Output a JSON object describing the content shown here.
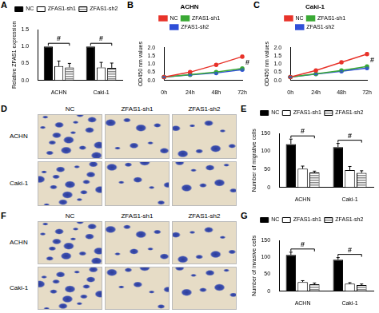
{
  "chart_data": [
    {
      "panel": "A",
      "type": "bar",
      "y_label": "Relative ZFAS1 expression",
      "categories": [
        "ACHN",
        "Caki-1"
      ],
      "series": [
        {
          "name": "NC",
          "color": "#000000",
          "values": [
            1.0,
            1.0
          ],
          "errors": [
            0,
            0
          ]
        },
        {
          "name": "ZFAS1-sh1",
          "color": "#ffffff",
          "values": [
            0.42,
            0.38
          ],
          "errors": [
            0.15,
            0.15
          ]
        },
        {
          "name": "ZFAS1-sh2",
          "color": "#8c8c8c",
          "values": [
            0.38,
            0.37
          ],
          "errors": [
            0.12,
            0.14
          ]
        }
      ],
      "ylim": [
        0,
        1.5
      ],
      "yticks": [
        {
          "value": 0,
          "label": "0.0"
        },
        {
          "value": 0.5,
          "label": "0.5"
        },
        {
          "value": 1,
          "label": "1.0"
        },
        {
          "value": 1.5,
          "label": "1.5"
        }
      ],
      "grid": false,
      "legend": "top",
      "annotations": [
        {
          "text": "#",
          "category": "ACHN"
        },
        {
          "text": "#",
          "category": "Caki-1"
        }
      ]
    },
    {
      "panel": "B",
      "type": "line",
      "title": "ACHN",
      "y_label": "OD450 nm values",
      "categories": [
        "0h",
        "24h",
        "48h",
        "72h"
      ],
      "series": [
        {
          "name": "NC",
          "color": "#e8332a",
          "marker": "circle",
          "values": [
            0.2,
            0.5,
            0.95,
            1.45
          ],
          "errors": [
            0.02,
            0.04,
            0.05,
            0.08
          ]
        },
        {
          "name": "ZFAS1-sh1",
          "color": "#3aa935",
          "marker": "circle",
          "values": [
            0.2,
            0.35,
            0.5,
            0.72
          ],
          "errors": [
            0.02,
            0.03,
            0.04,
            0.05
          ]
        },
        {
          "name": "ZFAS1-sh2",
          "color": "#2f4fd8",
          "marker": "circle",
          "values": [
            0.2,
            0.33,
            0.45,
            0.65
          ],
          "errors": [
            0.02,
            0.03,
            0.04,
            0.05
          ]
        }
      ],
      "ylim": [
        0,
        2
      ],
      "yticks": [
        {
          "value": 0,
          "label": "0.0"
        },
        {
          "value": 0.5,
          "label": "0.5"
        },
        {
          "value": 1,
          "label": "1.0"
        },
        {
          "value": 1.5,
          "label": "1.5"
        },
        {
          "value": 2,
          "label": "2.0"
        }
      ],
      "grid": false,
      "legend": "top",
      "annotations": [
        {
          "text": "#",
          "category": "72h"
        }
      ]
    },
    {
      "panel": "C",
      "type": "line",
      "title": "Caki-1",
      "y_label": "OD450 nm values",
      "categories": [
        "0h",
        "24h",
        "48h",
        "72h"
      ],
      "series": [
        {
          "name": "NC",
          "color": "#e8332a",
          "marker": "circle",
          "values": [
            0.2,
            0.6,
            1.1,
            1.6
          ],
          "errors": [
            0.02,
            0.04,
            0.06,
            0.08
          ]
        },
        {
          "name": "ZFAS1-sh1",
          "color": "#3aa935",
          "marker": "circle",
          "values": [
            0.2,
            0.4,
            0.6,
            0.85
          ],
          "errors": [
            0.02,
            0.03,
            0.04,
            0.05
          ]
        },
        {
          "name": "ZFAS1-sh2",
          "color": "#2f4fd8",
          "marker": "circle",
          "values": [
            0.2,
            0.38,
            0.55,
            0.75
          ],
          "errors": [
            0.02,
            0.03,
            0.04,
            0.05
          ]
        }
      ],
      "ylim": [
        0,
        2
      ],
      "yticks": [
        {
          "value": 0,
          "label": "0.0"
        },
        {
          "value": 0.5,
          "label": "0.5"
        },
        {
          "value": 1,
          "label": "1.0"
        },
        {
          "value": 1.5,
          "label": "1.5"
        },
        {
          "value": 2,
          "label": "2.0"
        }
      ],
      "grid": false,
      "legend": "top",
      "annotations": [
        {
          "text": "#",
          "category": "72h"
        }
      ]
    },
    {
      "panel": "D",
      "type": "image_grid",
      "columns": [
        "NC",
        "ZFAS1-sh1",
        "ZFAS1-sh2"
      ],
      "rows": [
        "ACHN",
        "Caki-1"
      ]
    },
    {
      "panel": "E",
      "type": "bar",
      "y_label": "Number of migrative cells",
      "categories": [
        "ACHN",
        "Caki-1"
      ],
      "series": [
        {
          "name": "NC",
          "color": "#000000",
          "values": [
            120,
            112
          ],
          "errors": [
            14,
            10
          ]
        },
        {
          "name": "ZFAS1-sh1",
          "color": "#ffffff",
          "values": [
            52,
            48
          ],
          "errors": [
            7,
            10
          ]
        },
        {
          "name": "ZFAS1-sh2",
          "color": "#8c8c8c",
          "values": [
            41,
            40
          ],
          "errors": [
            4,
            6
          ]
        }
      ],
      "ylim": [
        0,
        150
      ],
      "yticks": [
        0,
        50,
        100,
        150
      ],
      "grid": false,
      "legend": "top",
      "annotations": [
        {
          "text": "#",
          "category": "ACHN"
        },
        {
          "text": "#",
          "category": "Caki-1"
        }
      ]
    },
    {
      "panel": "F",
      "type": "image_grid",
      "columns": [
        "NC",
        "ZFAS1-sh1",
        "ZFAS1-sh2"
      ],
      "rows": [
        "ACHN",
        "Caki-1"
      ]
    },
    {
      "panel": "G",
      "type": "bar",
      "y_label": "Number of invasive cells",
      "categories": [
        "ACHN",
        "Caki-1"
      ],
      "series": [
        {
          "name": "NC",
          "color": "#000000",
          "values": [
            107,
            93
          ],
          "errors": [
            8,
            6
          ]
        },
        {
          "name": "ZFAS1-sh1",
          "color": "#ffffff",
          "values": [
            27,
            22
          ],
          "errors": [
            4,
            3
          ]
        },
        {
          "name": "ZFAS1-sh2",
          "color": "#8c8c8c",
          "values": [
            20,
            18
          ],
          "errors": [
            4,
            3
          ]
        }
      ],
      "ylim": [
        0,
        150
      ],
      "yticks": [
        0,
        50,
        100,
        150
      ],
      "grid": false,
      "legend": "top",
      "annotations": [
        {
          "text": "#",
          "category": "ACHN"
        },
        {
          "text": "#",
          "category": "Caki-1"
        }
      ]
    }
  ]
}
